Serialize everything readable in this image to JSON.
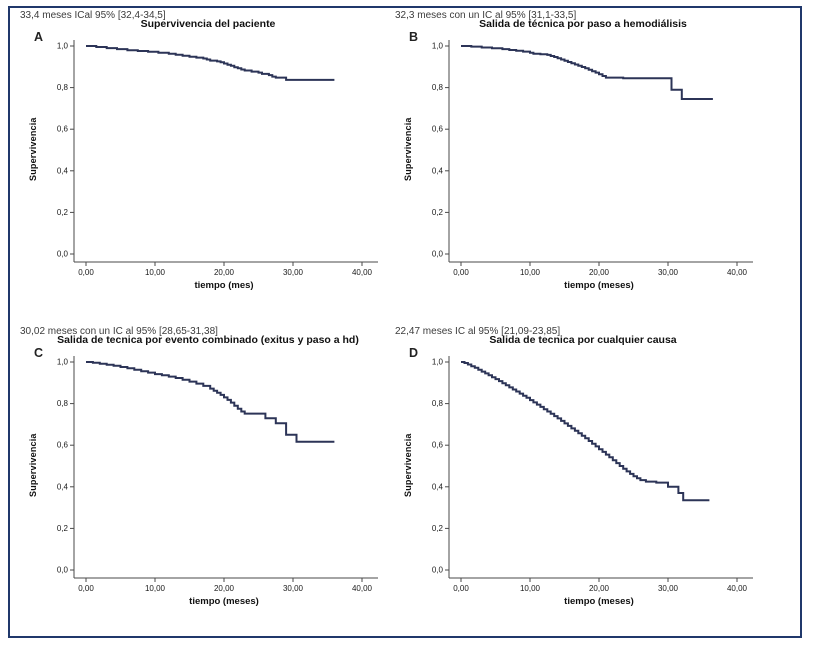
{
  "figure": {
    "border_color": "#20386b",
    "line_color": "#2c3457",
    "axis_color": "#4a4a4a",
    "background": "#ffffff"
  },
  "chart_data": [
    {
      "type": "line",
      "subtype": "kaplan-meier-step",
      "panel": "A",
      "title": "Supervivencia del paciente",
      "xlabel": "tiempo (mes)",
      "ylabel": "Supervivencia",
      "annotation": "33,4 meses ICal 95% [32,4-34,5]",
      "x_ticks": [
        "0,00",
        "10,00",
        "20,00",
        "30,00",
        "40,00"
      ],
      "y_ticks": [
        "1,0",
        "0,8",
        "0,6",
        "0,4",
        "0,2",
        "0,0"
      ],
      "xlim": [
        0,
        42
      ],
      "ylim": [
        0,
        1.0
      ],
      "grid": false,
      "legend": "none",
      "steps": [
        [
          0,
          1.0
        ],
        [
          1.5,
          0.995
        ],
        [
          3,
          0.99
        ],
        [
          4.5,
          0.985
        ],
        [
          6,
          0.98
        ],
        [
          7.5,
          0.976
        ],
        [
          9,
          0.972
        ],
        [
          10.5,
          0.968
        ],
        [
          12,
          0.963
        ],
        [
          13,
          0.958
        ],
        [
          14,
          0.953
        ],
        [
          15,
          0.948
        ],
        [
          16,
          0.944
        ],
        [
          17,
          0.94
        ],
        [
          17.5,
          0.935
        ],
        [
          18,
          0.93
        ],
        [
          19,
          0.926
        ],
        [
          19.5,
          0.922
        ],
        [
          20,
          0.916
        ],
        [
          20.5,
          0.91
        ],
        [
          21,
          0.905
        ],
        [
          21.5,
          0.898
        ],
        [
          22,
          0.893
        ],
        [
          22.5,
          0.887
        ],
        [
          23,
          0.882
        ],
        [
          24,
          0.877
        ],
        [
          25,
          0.872
        ],
        [
          25.5,
          0.866
        ],
        [
          26.5,
          0.86
        ],
        [
          27,
          0.853
        ],
        [
          27.5,
          0.848
        ],
        [
          29,
          0.837
        ],
        [
          36,
          0.837
        ]
      ]
    },
    {
      "type": "line",
      "subtype": "kaplan-meier-step",
      "panel": "B",
      "title": "Salida de técnica por paso a hemodiálisis",
      "xlabel": "tiempo (meses)",
      "ylabel": "Supervivencia",
      "annotation": "32,3 meses con un IC al 95% [31,1-33,5]",
      "x_ticks": [
        "0,00",
        "10,00",
        "20,00",
        "30,00",
        "40,00"
      ],
      "y_ticks": [
        "1,0",
        "0,8",
        "0,6",
        "0,4",
        "0,2",
        "0,0"
      ],
      "xlim": [
        0,
        42
      ],
      "ylim": [
        0,
        1.0
      ],
      "grid": false,
      "legend": "none",
      "steps": [
        [
          0,
          1.0
        ],
        [
          1.5,
          0.997
        ],
        [
          3,
          0.993
        ],
        [
          4.5,
          0.989
        ],
        [
          6,
          0.985
        ],
        [
          7,
          0.981
        ],
        [
          8,
          0.977
        ],
        [
          9,
          0.973
        ],
        [
          10,
          0.968
        ],
        [
          10.5,
          0.963
        ],
        [
          11.5,
          0.96
        ],
        [
          12.5,
          0.957
        ],
        [
          13,
          0.952
        ],
        [
          13.5,
          0.947
        ],
        [
          14,
          0.941
        ],
        [
          14.5,
          0.935
        ],
        [
          15,
          0.929
        ],
        [
          15.5,
          0.923
        ],
        [
          16,
          0.917
        ],
        [
          16.5,
          0.911
        ],
        [
          17,
          0.905
        ],
        [
          17.5,
          0.899
        ],
        [
          18,
          0.893
        ],
        [
          18.5,
          0.886
        ],
        [
          19,
          0.879
        ],
        [
          19.5,
          0.872
        ],
        [
          20,
          0.864
        ],
        [
          20.5,
          0.856
        ],
        [
          21,
          0.848
        ],
        [
          23.5,
          0.845
        ],
        [
          30.5,
          0.79
        ],
        [
          32,
          0.745
        ],
        [
          36.5,
          0.745
        ]
      ]
    },
    {
      "type": "line",
      "subtype": "kaplan-meier-step",
      "panel": "C",
      "title": "Salida de tecnica por evento combinado (exitus y paso a hd)",
      "xlabel": "tiempo (meses)",
      "ylabel": "Supervivencia",
      "annotation": "30,02 meses con un IC al 95% [28,65-31,38]",
      "x_ticks": [
        "0,00",
        "10,00",
        "20,00",
        "30,00",
        "40,00"
      ],
      "y_ticks": [
        "1,0",
        "0,8",
        "0,6",
        "0,4",
        "0,2",
        "0,0"
      ],
      "xlim": [
        0,
        42
      ],
      "ylim": [
        0,
        1.0
      ],
      "grid": false,
      "legend": "none",
      "steps": [
        [
          0,
          1.0
        ],
        [
          1,
          0.996
        ],
        [
          2,
          0.992
        ],
        [
          3,
          0.987
        ],
        [
          4,
          0.982
        ],
        [
          5,
          0.976
        ],
        [
          6,
          0.97
        ],
        [
          7,
          0.963
        ],
        [
          8,
          0.956
        ],
        [
          9,
          0.949
        ],
        [
          10,
          0.942
        ],
        [
          11,
          0.936
        ],
        [
          12,
          0.93
        ],
        [
          13,
          0.923
        ],
        [
          14,
          0.915
        ],
        [
          15,
          0.906
        ],
        [
          16,
          0.896
        ],
        [
          17,
          0.885
        ],
        [
          18,
          0.872
        ],
        [
          18.5,
          0.862
        ],
        [
          19,
          0.852
        ],
        [
          19.5,
          0.842
        ],
        [
          20,
          0.83
        ],
        [
          20.5,
          0.818
        ],
        [
          21,
          0.805
        ],
        [
          21.5,
          0.79
        ],
        [
          22,
          0.775
        ],
        [
          22.5,
          0.762
        ],
        [
          23,
          0.752
        ],
        [
          26,
          0.73
        ],
        [
          27.5,
          0.706
        ],
        [
          29,
          0.65
        ],
        [
          30.5,
          0.617
        ],
        [
          36,
          0.617
        ]
      ]
    },
    {
      "type": "line",
      "subtype": "kaplan-meier-step",
      "panel": "D",
      "title": "Salida de tecnica por cualquier causa",
      "xlabel": "tiempo (meses)",
      "ylabel": "Supervivencia",
      "annotation": "22,47 meses IC al 95% [21,09-23,85]",
      "x_ticks": [
        "0,00",
        "10,00",
        "20,00",
        "30,00",
        "40,00"
      ],
      "y_ticks": [
        "1,0",
        "0,8",
        "0,6",
        "0,4",
        "0,2",
        "0,0"
      ],
      "xlim": [
        0,
        42
      ],
      "ylim": [
        0,
        1.0
      ],
      "grid": false,
      "legend": "none",
      "steps": [
        [
          0,
          1.0
        ],
        [
          0.5,
          0.995
        ],
        [
          1,
          0.988
        ],
        [
          1.5,
          0.98
        ],
        [
          2,
          0.972
        ],
        [
          2.5,
          0.963
        ],
        [
          3,
          0.954
        ],
        [
          3.5,
          0.945
        ],
        [
          4,
          0.936
        ],
        [
          4.5,
          0.927
        ],
        [
          5,
          0.918
        ],
        [
          5.5,
          0.908
        ],
        [
          6,
          0.898
        ],
        [
          6.5,
          0.888
        ],
        [
          7,
          0.878
        ],
        [
          7.5,
          0.868
        ],
        [
          8,
          0.858
        ],
        [
          8.5,
          0.848
        ],
        [
          9,
          0.838
        ],
        [
          9.5,
          0.828
        ],
        [
          10,
          0.817
        ],
        [
          10.5,
          0.806
        ],
        [
          11,
          0.795
        ],
        [
          11.5,
          0.784
        ],
        [
          12,
          0.773
        ],
        [
          12.5,
          0.762
        ],
        [
          13,
          0.751
        ],
        [
          13.5,
          0.74
        ],
        [
          14,
          0.729
        ],
        [
          14.5,
          0.717
        ],
        [
          15,
          0.705
        ],
        [
          15.5,
          0.693
        ],
        [
          16,
          0.681
        ],
        [
          16.5,
          0.669
        ],
        [
          17,
          0.657
        ],
        [
          17.5,
          0.645
        ],
        [
          18,
          0.633
        ],
        [
          18.5,
          0.62
        ],
        [
          19,
          0.607
        ],
        [
          19.5,
          0.594
        ],
        [
          20,
          0.581
        ],
        [
          20.5,
          0.568
        ],
        [
          21,
          0.555
        ],
        [
          21.5,
          0.542
        ],
        [
          22,
          0.528
        ],
        [
          22.5,
          0.514
        ],
        [
          23,
          0.5
        ],
        [
          23.5,
          0.487
        ],
        [
          24,
          0.474
        ],
        [
          24.5,
          0.462
        ],
        [
          25,
          0.451
        ],
        [
          25.5,
          0.441
        ],
        [
          26,
          0.432
        ],
        [
          26.8,
          0.425
        ],
        [
          28.3,
          0.42
        ],
        [
          30,
          0.4
        ],
        [
          31.5,
          0.37
        ],
        [
          32.2,
          0.335
        ],
        [
          36,
          0.335
        ]
      ]
    }
  ]
}
